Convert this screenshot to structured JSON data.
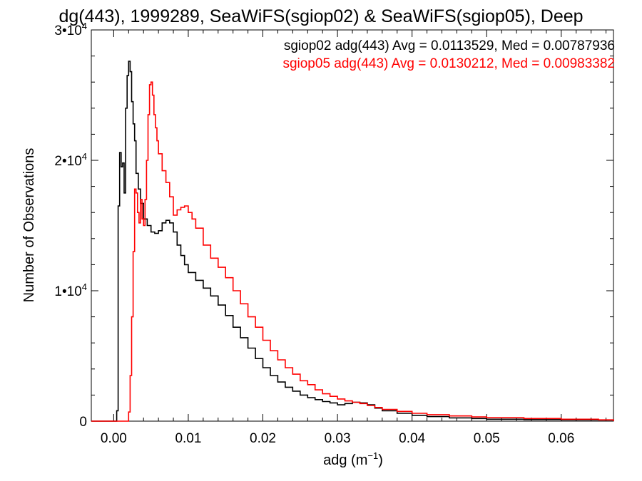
{
  "chart_data": {
    "type": "line",
    "title": "dg(443), 1999289, SeaWiFS(sgiop02) & SeaWiFS(sgiop05), Deep",
    "xlabel_base": "adg (m",
    "xlabel_sup": "−1",
    "xlabel_close": ")",
    "ylabel": "Number of Observations",
    "xlim": [
      -0.003,
      0.067
    ],
    "ylim": [
      0,
      30000
    ],
    "x_ticks": [
      {
        "value": 0.0,
        "label": "0.00"
      },
      {
        "value": 0.01,
        "label": "0.01"
      },
      {
        "value": 0.02,
        "label": "0.02"
      },
      {
        "value": 0.03,
        "label": "0.03"
      },
      {
        "value": 0.04,
        "label": "0.04"
      },
      {
        "value": 0.05,
        "label": "0.05"
      },
      {
        "value": 0.06,
        "label": "0.06"
      }
    ],
    "y_ticks": [
      {
        "value": 0,
        "label": "0",
        "sup": ""
      },
      {
        "value": 10000,
        "label": "1•10",
        "sup": "4"
      },
      {
        "value": 20000,
        "label": "2•10",
        "sup": "4"
      },
      {
        "value": 30000,
        "label": "3•10",
        "sup": "4"
      }
    ],
    "legend_position": "top-right",
    "series": [
      {
        "name": "sgiop02 adg(443) Avg = 0.0113529, Med = 0.00787936",
        "color": "#000000",
        "x": [
          -0.003,
          0.0002,
          0.0004,
          0.0006,
          0.0008,
          0.001,
          0.0012,
          0.0014,
          0.0016,
          0.0018,
          0.002,
          0.0022,
          0.0024,
          0.0026,
          0.0028,
          0.003,
          0.0033,
          0.0036,
          0.004,
          0.0045,
          0.005,
          0.0055,
          0.006,
          0.0065,
          0.007,
          0.0075,
          0.008,
          0.0085,
          0.009,
          0.0095,
          0.01,
          0.011,
          0.012,
          0.013,
          0.014,
          0.015,
          0.016,
          0.017,
          0.018,
          0.019,
          0.02,
          0.021,
          0.022,
          0.023,
          0.024,
          0.025,
          0.026,
          0.027,
          0.028,
          0.029,
          0.03,
          0.031,
          0.032,
          0.033,
          0.034,
          0.035,
          0.036,
          0.038,
          0.04,
          0.042,
          0.045,
          0.048,
          0.05,
          0.055,
          0.06,
          0.065,
          0.067
        ],
        "y": [
          0,
          0,
          800,
          16500,
          20600,
          19500,
          19800,
          17500,
          24000,
          26500,
          27600,
          26800,
          24500,
          22800,
          21500,
          19000,
          17800,
          16700,
          15500,
          15000,
          14500,
          14400,
          14600,
          15200,
          15400,
          15200,
          14500,
          13500,
          12700,
          12000,
          11400,
          10800,
          10200,
          9600,
          8900,
          8100,
          7200,
          6400,
          5600,
          4800,
          4100,
          3500,
          3000,
          2600,
          2300,
          2000,
          1800,
          1650,
          1500,
          1400,
          1250,
          1350,
          1450,
          1400,
          1250,
          1000,
          800,
          600,
          450,
          350,
          250,
          200,
          150,
          120,
          100,
          80,
          0
        ]
      },
      {
        "name": "sgiop05 adg(443) Avg = 0.0130212, Med = 0.00983382",
        "color": "#ff0000",
        "x": [
          -0.003,
          0.0018,
          0.002,
          0.0022,
          0.0024,
          0.0026,
          0.0028,
          0.003,
          0.0032,
          0.0034,
          0.0036,
          0.0038,
          0.004,
          0.0042,
          0.0044,
          0.0046,
          0.0048,
          0.005,
          0.0052,
          0.0054,
          0.0056,
          0.0058,
          0.006,
          0.0065,
          0.007,
          0.0075,
          0.008,
          0.0085,
          0.009,
          0.0095,
          0.01,
          0.0105,
          0.011,
          0.012,
          0.013,
          0.014,
          0.015,
          0.016,
          0.017,
          0.018,
          0.019,
          0.02,
          0.021,
          0.022,
          0.023,
          0.024,
          0.025,
          0.026,
          0.027,
          0.028,
          0.029,
          0.03,
          0.031,
          0.032,
          0.033,
          0.034,
          0.035,
          0.036,
          0.038,
          0.04,
          0.042,
          0.045,
          0.048,
          0.05,
          0.055,
          0.06,
          0.065,
          0.067
        ],
        "y": [
          0,
          0,
          700,
          3500,
          8000,
          13000,
          17800,
          17500,
          16000,
          15200,
          17000,
          15500,
          15000,
          17000,
          20000,
          23500,
          25800,
          26000,
          25000,
          23500,
          22500,
          21500,
          20500,
          19200,
          18300,
          17200,
          15800,
          16200,
          16400,
          16500,
          16000,
          15500,
          14800,
          13500,
          12500,
          11800,
          11000,
          10000,
          9000,
          8000,
          7200,
          6200,
          5400,
          4700,
          4100,
          3600,
          3100,
          2800,
          2400,
          2100,
          1900,
          1700,
          1550,
          1450,
          1350,
          1200,
          1050,
          900,
          750,
          600,
          500,
          400,
          320,
          260,
          200,
          150,
          100,
          0
        ]
      }
    ]
  }
}
